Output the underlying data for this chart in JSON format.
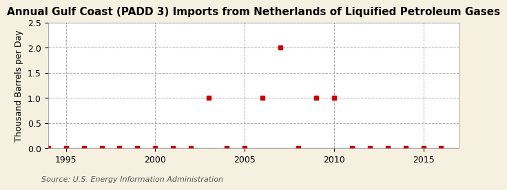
{
  "title": "Annual Gulf Coast (PADD 3) Imports from Netherlands of Liquified Petroleum Gases",
  "ylabel": "Thousand Barrels per Day",
  "source_text": "Source: U.S. Energy Information Administration",
  "background_color": "#f5f0e0",
  "plot_bg_color": "#ffffff",
  "marker_color": "#cc0000",
  "years": [
    1994,
    1995,
    1996,
    1997,
    1998,
    1999,
    2000,
    2001,
    2002,
    2003,
    2004,
    2005,
    2006,
    2007,
    2008,
    2009,
    2010,
    2011,
    2012,
    2013,
    2014,
    2015,
    2016
  ],
  "values": [
    0,
    0,
    0,
    0,
    0,
    0,
    0,
    0,
    0,
    1.0,
    0,
    0,
    1.0,
    2.0,
    0,
    1.0,
    1.0,
    0,
    0,
    0,
    0,
    0,
    0
  ],
  "xlim": [
    1994,
    2017
  ],
  "ylim": [
    0,
    2.5
  ],
  "yticks": [
    0.0,
    0.5,
    1.0,
    1.5,
    2.0,
    2.5
  ],
  "xticks": [
    1995,
    2000,
    2005,
    2010,
    2015
  ],
  "grid_color": "#aaaaaa",
  "grid_linestyle": "--",
  "title_fontsize": 11,
  "label_fontsize": 9,
  "tick_fontsize": 9,
  "source_fontsize": 8
}
